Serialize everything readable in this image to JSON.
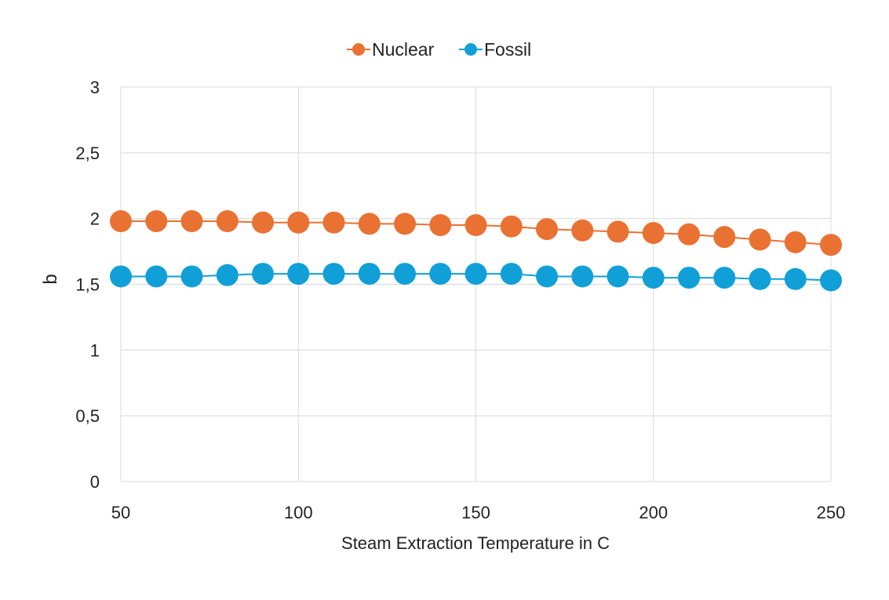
{
  "chart_data": {
    "type": "line",
    "xlabel": "Steam Extraction Temperature in C",
    "ylabel": "b",
    "xlim": [
      50,
      250
    ],
    "ylim": [
      0,
      3
    ],
    "x_ticks": [
      "50",
      "100",
      "150",
      "200",
      "250"
    ],
    "y_ticks": [
      "0",
      "0,5",
      "1",
      "1,5",
      "2",
      "2,5",
      "3"
    ],
    "grid": true,
    "legend_position": "top",
    "x": [
      50,
      60,
      70,
      80,
      90,
      100,
      110,
      120,
      130,
      140,
      150,
      160,
      170,
      180,
      190,
      200,
      210,
      220,
      230,
      240,
      250
    ],
    "series": [
      {
        "name": "Nuclear",
        "color": "#E97132",
        "values": [
          1.98,
          1.98,
          1.98,
          1.98,
          1.97,
          1.97,
          1.97,
          1.96,
          1.96,
          1.95,
          1.95,
          1.94,
          1.92,
          1.91,
          1.9,
          1.89,
          1.88,
          1.86,
          1.84,
          1.82,
          1.8
        ]
      },
      {
        "name": "Fossil",
        "color": "#119FD7",
        "values": [
          1.56,
          1.56,
          1.56,
          1.57,
          1.58,
          1.58,
          1.58,
          1.58,
          1.58,
          1.58,
          1.58,
          1.58,
          1.56,
          1.56,
          1.56,
          1.55,
          1.55,
          1.55,
          1.54,
          1.54,
          1.53
        ]
      }
    ]
  }
}
